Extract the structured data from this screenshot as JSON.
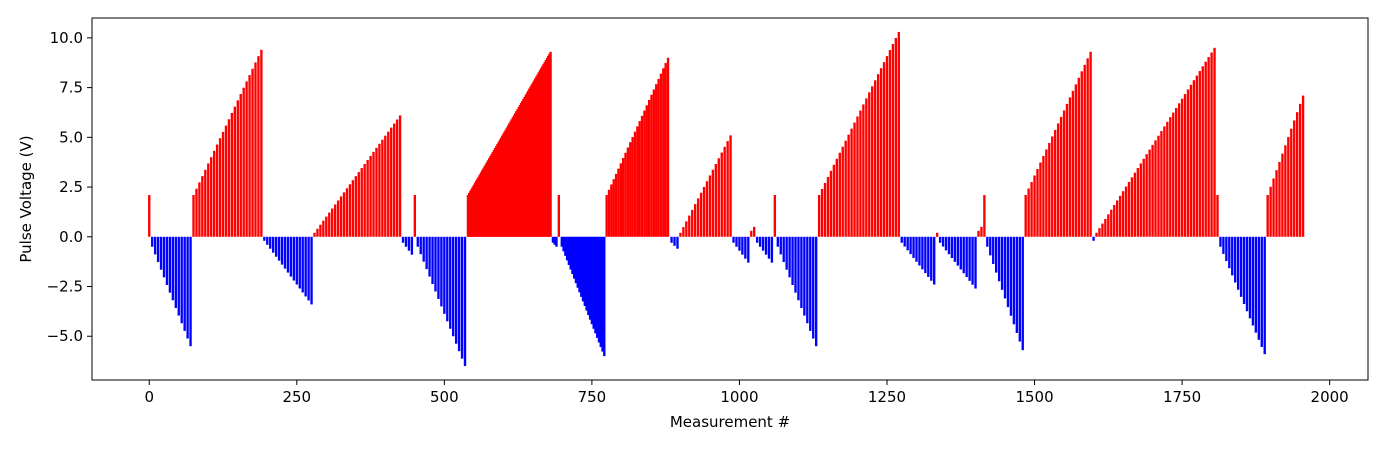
{
  "chart_data": {
    "type": "bar",
    "title": "",
    "xlabel": "Measurement #",
    "ylabel": "Pulse Voltage (V)",
    "xlim": [
      -97,
      2065
    ],
    "ylim": [
      -7.2,
      11.0
    ],
    "x_ticks": [
      0,
      250,
      500,
      750,
      1000,
      1250,
      1500,
      1750,
      2000
    ],
    "y_ticks": [
      -5.0,
      -2.5,
      0.0,
      2.5,
      5.0,
      7.5,
      10.0
    ],
    "x_tick_labels": [
      "0",
      "250",
      "500",
      "750",
      "1000",
      "1250",
      "1500",
      "1750",
      "2000"
    ],
    "y_tick_labels": [
      "−5.0",
      "−2.5",
      "0.0",
      "2.5",
      "5.0",
      "7.5",
      "10.0"
    ],
    "grid": false,
    "colors": {
      "positive": "#ff0000",
      "negative": "#0000ff"
    },
    "bar_width": 4,
    "segments": [
      {
        "x_start": 0,
        "x_end": 0,
        "y_start": 2.1,
        "y_end": 2.1,
        "step": 5
      },
      {
        "x_start": 5,
        "x_end": 70,
        "y_start": -0.5,
        "y_end": -5.5,
        "step": 5
      },
      {
        "x_start": 75,
        "x_end": 190,
        "y_start": 2.1,
        "y_end": 9.4,
        "step": 5
      },
      {
        "x_start": 195,
        "x_end": 275,
        "y_start": -0.2,
        "y_end": -3.4,
        "step": 5
      },
      {
        "x_start": 280,
        "x_end": 425,
        "y_start": 0.2,
        "y_end": 6.1,
        "step": 5
      },
      {
        "x_start": 430,
        "x_end": 445,
        "y_start": -0.3,
        "y_end": -0.9,
        "step": 5
      },
      {
        "x_start": 450,
        "x_end": 450,
        "y_start": 2.1,
        "y_end": 2.1,
        "step": 5
      },
      {
        "x_start": 455,
        "x_end": 535,
        "y_start": -0.5,
        "y_end": -6.5,
        "step": 5
      },
      {
        "x_start": 540,
        "x_end": 680,
        "y_start": 2.1,
        "y_end": 9.3,
        "step": 2
      },
      {
        "x_start": 684,
        "x_end": 690,
        "y_start": -0.3,
        "y_end": -0.5,
        "step": 3
      },
      {
        "x_start": 694,
        "x_end": 694,
        "y_start": 2.1,
        "y_end": 2.1,
        "step": 5
      },
      {
        "x_start": 699,
        "x_end": 770,
        "y_start": -0.5,
        "y_end": -6.0,
        "step": 3
      },
      {
        "x_start": 775,
        "x_end": 880,
        "y_start": 2.1,
        "y_end": 9.0,
        "step": 4
      },
      {
        "x_start": 885,
        "x_end": 895,
        "y_start": -0.3,
        "y_end": -0.6,
        "step": 5
      },
      {
        "x_start": 900,
        "x_end": 985,
        "y_start": 0.2,
        "y_end": 5.1,
        "step": 5
      },
      {
        "x_start": 990,
        "x_end": 1015,
        "y_start": -0.3,
        "y_end": -1.3,
        "step": 5
      },
      {
        "x_start": 1020,
        "x_end": 1025,
        "y_start": 0.3,
        "y_end": 0.5,
        "step": 5
      },
      {
        "x_start": 1030,
        "x_end": 1055,
        "y_start": -0.3,
        "y_end": -1.3,
        "step": 5
      },
      {
        "x_start": 1060,
        "x_end": 1060,
        "y_start": 2.1,
        "y_end": 2.1,
        "step": 5
      },
      {
        "x_start": 1065,
        "x_end": 1130,
        "y_start": -0.5,
        "y_end": -5.5,
        "step": 5
      },
      {
        "x_start": 1135,
        "x_end": 1270,
        "y_start": 2.1,
        "y_end": 10.3,
        "step": 5
      },
      {
        "x_start": 1275,
        "x_end": 1330,
        "y_start": -0.3,
        "y_end": -2.4,
        "step": 5
      },
      {
        "x_start": 1335,
        "x_end": 1335,
        "y_start": 0.2,
        "y_end": 0.2,
        "step": 5
      },
      {
        "x_start": 1340,
        "x_end": 1400,
        "y_start": -0.3,
        "y_end": -2.6,
        "step": 5
      },
      {
        "x_start": 1405,
        "x_end": 1410,
        "y_start": 0.3,
        "y_end": 0.5,
        "step": 5
      },
      {
        "x_start": 1415,
        "x_end": 1415,
        "y_start": 2.1,
        "y_end": 2.1,
        "step": 5
      },
      {
        "x_start": 1420,
        "x_end": 1480,
        "y_start": -0.5,
        "y_end": -5.7,
        "step": 5
      },
      {
        "x_start": 1485,
        "x_end": 1595,
        "y_start": 2.1,
        "y_end": 9.3,
        "step": 5
      },
      {
        "x_start": 1600,
        "x_end": 1600,
        "y_start": -0.2,
        "y_end": -0.2,
        "step": 5
      },
      {
        "x_start": 1605,
        "x_end": 1805,
        "y_start": 0.2,
        "y_end": 9.5,
        "step": 5
      },
      {
        "x_start": 1810,
        "x_end": 1810,
        "y_start": 2.1,
        "y_end": 2.1,
        "step": 5
      },
      {
        "x_start": 1815,
        "x_end": 1890,
        "y_start": -0.5,
        "y_end": -5.9,
        "step": 5
      },
      {
        "x_start": 1895,
        "x_end": 1955,
        "y_start": 2.1,
        "y_end": 7.1,
        "step": 5
      }
    ]
  }
}
